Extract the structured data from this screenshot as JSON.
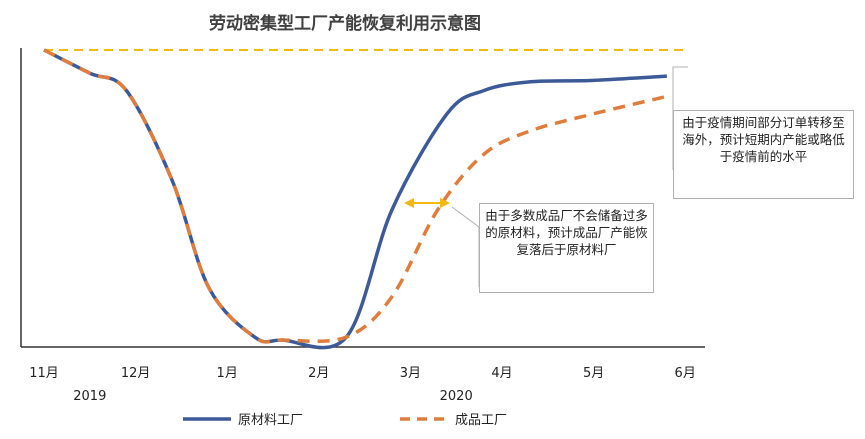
{
  "chart_data": {
    "type": "line",
    "title": "劳动密集型工厂产能恢复利用示意图",
    "categories": [
      "11月",
      "12月",
      "1月",
      "2月",
      "3月",
      "4月",
      "5月",
      "6月"
    ],
    "years": [
      {
        "label": "2019",
        "from": "11月",
        "to": "12月"
      },
      {
        "label": "2020",
        "from": "1月",
        "to": "6月"
      }
    ],
    "ylim": [
      0,
      100
    ],
    "grid": false,
    "legend": "bottom",
    "baseline_label": "",
    "baseline_value": 100,
    "series": [
      {
        "name": "原材料工厂",
        "color": "#3d5a98",
        "style": "solid",
        "points": [
          [
            0,
            100
          ],
          [
            0.5,
            92
          ],
          [
            0.9,
            86
          ],
          [
            1.4,
            55
          ],
          [
            1.8,
            18
          ],
          [
            2.3,
            1
          ],
          [
            2.6,
            0
          ],
          [
            3.3,
            1
          ],
          [
            3.8,
            45
          ],
          [
            4.4,
            78
          ],
          [
            4.8,
            86
          ],
          [
            5.3,
            89
          ],
          [
            6.0,
            89.5
          ],
          [
            6.8,
            91
          ]
        ]
      },
      {
        "name": "成品工厂",
        "color": "#e07d3c",
        "style": "dashed",
        "points": [
          [
            0,
            100
          ],
          [
            0.5,
            92
          ],
          [
            0.9,
            86
          ],
          [
            1.4,
            55
          ],
          [
            1.8,
            18
          ],
          [
            2.3,
            1
          ],
          [
            2.6,
            0
          ],
          [
            3.3,
            1
          ],
          [
            3.8,
            15
          ],
          [
            4.3,
            45
          ],
          [
            4.8,
            64
          ],
          [
            5.3,
            72
          ],
          [
            6.0,
            78
          ],
          [
            6.8,
            84
          ]
        ]
      }
    ],
    "annotations": [
      {
        "text": "由于多数成品厂不会储备过多的原材料，预计成品厂产能恢复落后于原材料厂"
      },
      {
        "text": "由于疫情期间部分订单转移至海外，预计短期内产能或略低于疫情前的水平"
      }
    ],
    "colors": {
      "baseline": "#f2b90f",
      "arrow": "#f2b90f",
      "axis": "#333333"
    }
  }
}
